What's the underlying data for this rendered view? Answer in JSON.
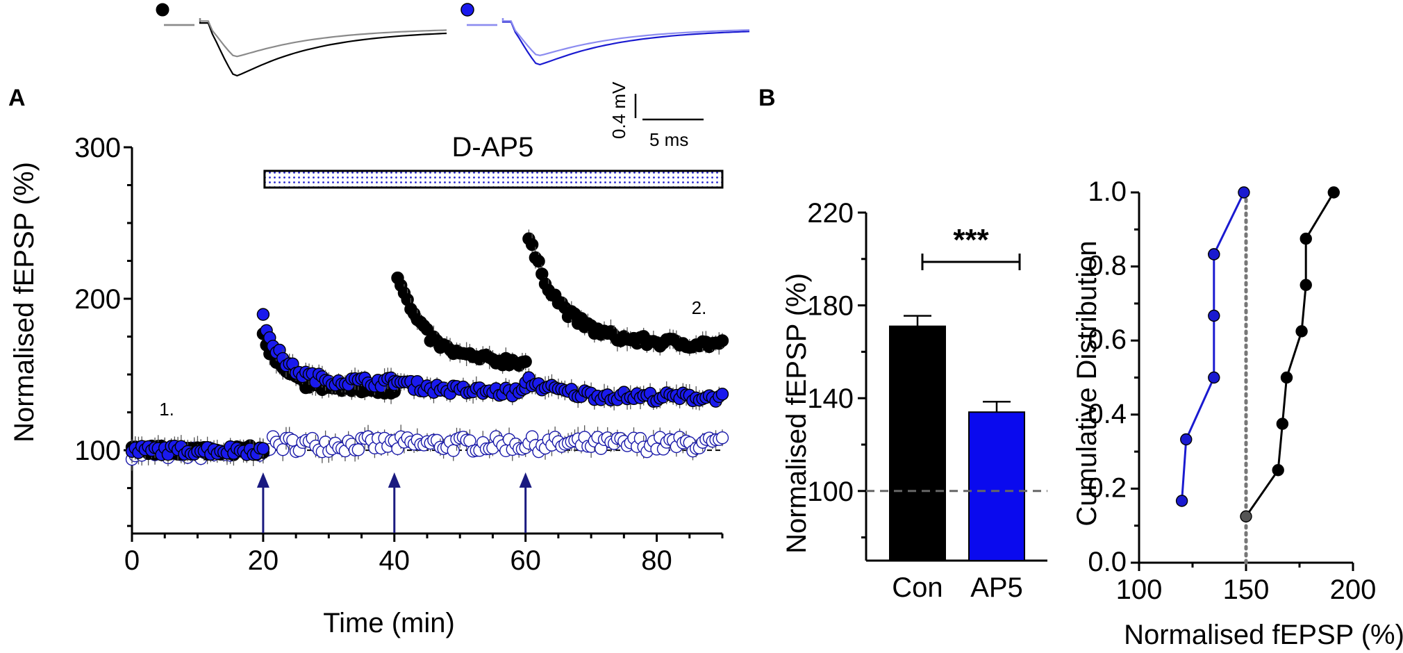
{
  "chart_data": [
    {
      "id": "panel-a",
      "type": "scatter",
      "panel_label": "A",
      "xlabel": "Time (min)",
      "ylabel": "Normalised fEPSP (%)",
      "xlim": [
        0,
        90
      ],
      "ylim": [
        45,
        300
      ],
      "xticks": [
        0,
        20,
        40,
        60,
        80
      ],
      "yticks": [
        100,
        200,
        300
      ],
      "baseline": 100,
      "drug_bar": {
        "label": "D-AP5",
        "x_start": 20,
        "x_end": 90
      },
      "tetanus_arrows_x": [
        20,
        40,
        60
      ],
      "annotations": [
        {
          "text": "1.",
          "x": 5,
          "y": 123
        },
        {
          "text": "2.",
          "x": 87,
          "y": 190
        }
      ],
      "series": [
        {
          "name": "Control (black)",
          "color": "#000000",
          "fill": "#000000",
          "segments": [
            {
              "x_start": 0,
              "x_end": 20,
              "a": 0,
              "b": 100,
              "tau": 1,
              "noise": 3
            },
            {
              "x_start": 20,
              "x_end": 40,
              "a": 35,
              "b": 140,
              "tau": 3,
              "noise": 3
            },
            {
              "x_start": 40.5,
              "x_end": 60,
              "a": 58,
              "b": 158,
              "tau": 4,
              "noise": 3
            },
            {
              "x_start": 60.5,
              "x_end": 90,
              "a": 70,
              "b": 170,
              "tau": 5,
              "noise": 3
            }
          ]
        },
        {
          "name": "D-AP5 (blue)",
          "color": "#000000",
          "fill": "#1a1aee",
          "segments": [
            {
              "x_start": 0,
              "x_end": 20,
              "a": 0,
              "b": 100,
              "tau": 1,
              "noise": 3
            },
            {
              "x_start": 20,
              "x_end": 40,
              "a": 42,
              "b": 145,
              "tau": 3,
              "noise": 3
            },
            {
              "x_start": 40,
              "x_end": 60,
              "a": 8,
              "b": 138,
              "tau": 6,
              "noise": 3
            },
            {
              "x_start": 60,
              "x_end": 90,
              "a": 12,
              "b": 135,
              "tau": 5,
              "noise": 3
            }
          ]
        },
        {
          "name": "Unstimulated (open)",
          "color": "#1a1aaa",
          "fill": "#ffffff",
          "segments": [
            {
              "x_start": 0,
              "x_end": 20,
              "a": 0,
              "b": 98,
              "tau": 1,
              "noise": 4
            },
            {
              "x_start": 20,
              "x_end": 90,
              "a": 0,
              "b": 104,
              "tau": 1,
              "noise": 5
            }
          ]
        }
      ],
      "inset": {
        "scale_y_label": "0.4 mV",
        "scale_x_label": "5 ms",
        "traces": [
          {
            "name": "control-before",
            "color": "#000000",
            "peak": 1.0
          },
          {
            "name": "control-after",
            "color": "#8a8a8a",
            "peak": 0.62
          },
          {
            "name": "ap5-before",
            "color": "#1a1ad0",
            "peak": 0.78
          },
          {
            "name": "ap5-after",
            "color": "#8c8cf0",
            "peak": 0.6
          }
        ]
      }
    },
    {
      "id": "panel-b-bar",
      "type": "bar",
      "panel_label": "B",
      "ylabel": "Normalised fEPSP (%)",
      "ylim": [
        70,
        220
      ],
      "yticks": [
        100,
        140,
        180,
        220
      ],
      "baseline": 100,
      "categories": [
        "Con",
        "AP5"
      ],
      "values": [
        171,
        134
      ],
      "errors": [
        4.5,
        4.5
      ],
      "colors": [
        "#000000",
        "#0a0aee"
      ],
      "significance": "***"
    },
    {
      "id": "panel-b-cumulative",
      "type": "line",
      "xlabel": "Normalised fEPSP (%)",
      "ylabel": "Cumulative Distribution",
      "xlim": [
        100,
        200
      ],
      "ylim": [
        0,
        1.0
      ],
      "xticks": [
        100,
        150,
        200
      ],
      "yticks": [
        0.0,
        0.2,
        0.4,
        0.6,
        0.8,
        1.0
      ],
      "ytick_labels": [
        "0.0",
        "0.2",
        "0.4",
        "0.6",
        "0.8",
        "1.0"
      ],
      "vline_x": 150,
      "series": [
        {
          "name": "AP5",
          "color": "#1a1ad0",
          "x": [
            120,
            122,
            135,
            135,
            135,
            135,
            149
          ],
          "y": [
            0.167,
            0.333,
            0.5,
            0.667,
            0.833,
            0.833,
            1.0
          ]
        },
        {
          "name": "Con",
          "color": "#000000",
          "x": [
            150,
            165,
            167,
            169,
            176,
            178,
            178,
            191
          ],
          "y": [
            0.125,
            0.25,
            0.375,
            0.5,
            0.625,
            0.75,
            0.875,
            1.0
          ]
        }
      ]
    }
  ]
}
